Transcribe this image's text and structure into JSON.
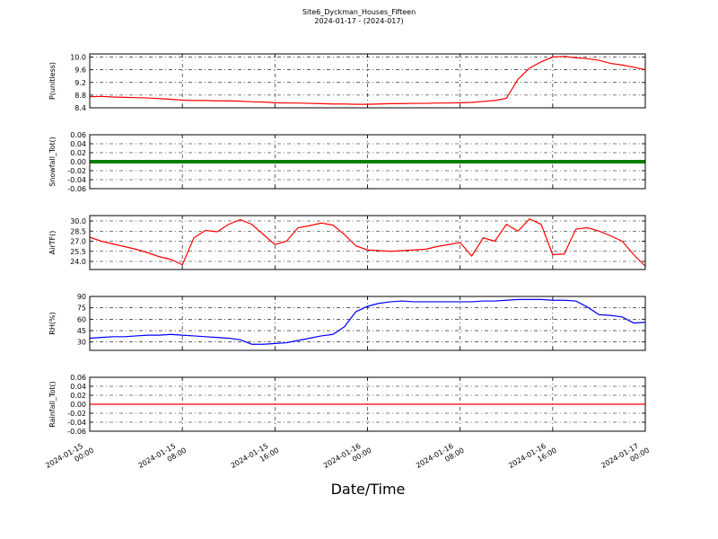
{
  "figure": {
    "title": "Site6_Dyckman_Houses_Fifteen",
    "subtitle": "2024-01-17 - (2024-017)",
    "xlabel": "Date/Time",
    "x": [
      "2024-01-15 00:00",
      "2024-01-15 01:00",
      "2024-01-15 02:00",
      "2024-01-15 03:00",
      "2024-01-15 04:00",
      "2024-01-15 05:00",
      "2024-01-15 06:00",
      "2024-01-15 07:00",
      "2024-01-15 08:00",
      "2024-01-15 09:00",
      "2024-01-15 10:00",
      "2024-01-15 11:00",
      "2024-01-15 12:00",
      "2024-01-15 13:00",
      "2024-01-15 14:00",
      "2024-01-15 15:00",
      "2024-01-15 16:00",
      "2024-01-15 17:00",
      "2024-01-15 18:00",
      "2024-01-15 19:00",
      "2024-01-15 20:00",
      "2024-01-15 21:00",
      "2024-01-15 22:00",
      "2024-01-15 23:00",
      "2024-01-16 00:00",
      "2024-01-16 01:00",
      "2024-01-16 02:00",
      "2024-01-16 03:00",
      "2024-01-16 04:00",
      "2024-01-16 05:00",
      "2024-01-16 06:00",
      "2024-01-16 07:00",
      "2024-01-16 08:00",
      "2024-01-16 09:00",
      "2024-01-16 10:00",
      "2024-01-16 11:00",
      "2024-01-16 12:00",
      "2024-01-16 13:00",
      "2024-01-16 14:00",
      "2024-01-16 15:00",
      "2024-01-16 16:00",
      "2024-01-16 17:00",
      "2024-01-16 18:00",
      "2024-01-16 19:00",
      "2024-01-16 20:00",
      "2024-01-16 21:00",
      "2024-01-16 22:00",
      "2024-01-16 23:00",
      "2024-01-17 00:00"
    ],
    "xlim": [
      "2024-01-15 00:00",
      "2024-01-17 00:00"
    ],
    "xticks": [
      "2024-01-15 00:00",
      "2024-01-15 08:00",
      "2024-01-15 16:00",
      "2024-01-16 00:00",
      "2024-01-16 08:00",
      "2024-01-16 16:00",
      "2024-01-17 00:00"
    ]
  },
  "chart_data": [
    {
      "type": "line",
      "ylabel": "P(unitless)",
      "ylim": [
        8.4,
        10.1
      ],
      "yticks": [
        8.4,
        8.8,
        9.2,
        9.6,
        {
          "value": 10,
          "label": "10.0"
        }
      ],
      "grid": true,
      "series": [
        {
          "color": "#ff0000",
          "values": [
            8.75,
            8.76,
            8.74,
            8.73,
            8.72,
            8.71,
            8.69,
            8.67,
            8.64,
            8.63,
            8.63,
            8.62,
            8.62,
            8.61,
            8.59,
            8.58,
            8.56,
            8.55,
            8.55,
            8.54,
            8.53,
            8.52,
            8.52,
            8.51,
            8.51,
            8.52,
            8.53,
            8.53,
            8.54,
            8.54,
            8.55,
            8.55,
            8.56,
            8.57,
            8.6,
            8.63,
            8.7,
            9.3,
            9.65,
            9.85,
            10.0,
            10.02,
            9.98,
            9.95,
            9.9,
            9.8,
            9.75,
            9.68,
            9.6
          ]
        }
      ]
    },
    {
      "type": "line",
      "ylabel": "Snowfall_Tot()",
      "ylim": [
        -0.06,
        0.06
      ],
      "yticks": [
        -0.06,
        -0.04,
        -0.02,
        {
          "value": 0,
          "label": "0.00"
        },
        0.02,
        0.04,
        0.06
      ],
      "grid": true,
      "series": [
        {
          "color": "#008000",
          "values": [
            0,
            0,
            0,
            0,
            0,
            0,
            0,
            0,
            0,
            0,
            0,
            0,
            0,
            0,
            0,
            0,
            0,
            0,
            0,
            0,
            0,
            0,
            0,
            0,
            0,
            0,
            0,
            0,
            0,
            0,
            0,
            0,
            0,
            0,
            0,
            0,
            0,
            0,
            0,
            0,
            0,
            0,
            0,
            0,
            0,
            0,
            0,
            0,
            0
          ]
        }
      ]
    },
    {
      "type": "line",
      "ylabel": "AirTF()",
      "ylim": [
        22.8,
        30.8
      ],
      "yticks": [
        {
          "value": 24,
          "label": "24.0"
        },
        25.5,
        {
          "value": 27,
          "label": "27.0"
        },
        28.5,
        {
          "value": 30,
          "label": "30.0"
        }
      ],
      "grid": true,
      "series": [
        {
          "color": "#ff0000",
          "values": [
            27.6,
            27.0,
            26.6,
            26.2,
            25.8,
            25.3,
            24.7,
            24.3,
            23.5,
            27.5,
            28.6,
            28.4,
            29.5,
            30.2,
            29.5,
            28.0,
            26.5,
            27.0,
            29.0,
            29.3,
            29.7,
            29.4,
            28.0,
            26.3,
            25.7,
            25.6,
            25.5,
            25.6,
            25.7,
            25.8,
            26.2,
            26.5,
            26.8,
            24.8,
            27.5,
            27.0,
            29.5,
            28.5,
            30.3,
            29.5,
            25.0,
            25.1,
            28.8,
            29.0,
            28.5,
            27.8,
            27.0,
            25.0,
            23.3
          ]
        }
      ]
    },
    {
      "type": "line",
      "ylabel": "RH(%)",
      "ylim": [
        19,
        90
      ],
      "yticks": [
        30,
        45,
        60,
        75,
        90
      ],
      "grid": true,
      "series": [
        {
          "color": "#0000ff",
          "values": [
            35,
            36,
            37,
            37,
            38,
            39,
            39,
            40,
            39,
            38,
            37,
            36,
            35,
            33,
            27,
            27,
            28,
            29,
            32,
            35,
            38,
            40,
            50,
            70,
            77,
            81,
            83,
            84,
            83,
            83,
            83,
            83,
            83,
            83,
            84,
            84,
            85,
            86,
            86,
            86,
            85,
            85,
            84,
            76,
            66,
            65,
            63,
            55,
            56
          ]
        }
      ]
    },
    {
      "type": "line",
      "ylabel": "Rainfall_Tot()",
      "ylim": [
        -0.06,
        0.06
      ],
      "yticks": [
        -0.06,
        -0.04,
        -0.02,
        {
          "value": 0,
          "label": "0.00"
        },
        0.02,
        0.04,
        0.06
      ],
      "grid": true,
      "series": [
        {
          "color": "#ff0000",
          "values": [
            0,
            0,
            0,
            0,
            0,
            0,
            0,
            0,
            0,
            0,
            0,
            0,
            0,
            0,
            0,
            0,
            0,
            0,
            0,
            0,
            0,
            0,
            0,
            0,
            0,
            0,
            0,
            0,
            0,
            0,
            0,
            0,
            0,
            0,
            0,
            0,
            0,
            0,
            0,
            0,
            0,
            0,
            0,
            0,
            0,
            0,
            0,
            0,
            0
          ]
        }
      ]
    }
  ]
}
